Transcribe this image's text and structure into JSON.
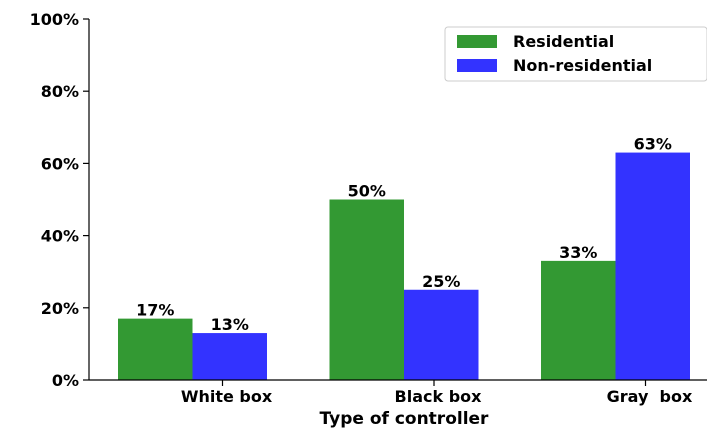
{
  "chart_data": {
    "type": "bar",
    "title": "",
    "xlabel": "Type of controller",
    "ylabel": "",
    "categories": [
      "White box",
      "Black box",
      "Gray  box"
    ],
    "series": [
      {
        "name": "Residential",
        "values": [
          17,
          50,
          33
        ],
        "labels": [
          "17%",
          "50%",
          "33%"
        ],
        "color": "#339933"
      },
      {
        "name": "Non-residential",
        "values": [
          13,
          25,
          63
        ],
        "labels": [
          "13%",
          "25%",
          "63%"
        ],
        "color": "#3333ff"
      }
    ],
    "ylim": [
      0,
      100
    ],
    "yticks": [
      0,
      20,
      40,
      60,
      80,
      100
    ],
    "ytick_labels": [
      "0%",
      "20%",
      "40%",
      "60%",
      "80%",
      "100%"
    ],
    "grid": false,
    "legend_position": "top-right"
  }
}
